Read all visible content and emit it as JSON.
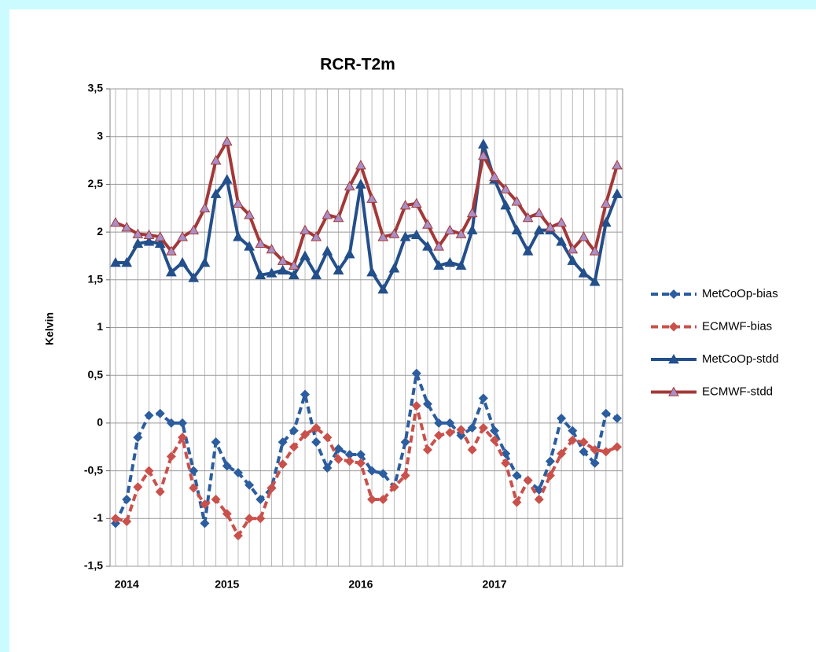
{
  "chart_data": {
    "type": "line",
    "title": "RCR-T2m",
    "y_label": "Kelvin",
    "categories": [
      null,
      "2014",
      null,
      null,
      null,
      null,
      null,
      null,
      null,
      null,
      "2015",
      null,
      null,
      null,
      null,
      null,
      null,
      null,
      null,
      null,
      null,
      null,
      "2016",
      null,
      null,
      null,
      null,
      null,
      null,
      null,
      null,
      null,
      null,
      null,
      "2017",
      null,
      null,
      null,
      null,
      null,
      null,
      null,
      null,
      null,
      null,
      null
    ],
    "ylim": [
      -1.5,
      3.5
    ],
    "yticks": [
      {
        "value": -1.5,
        "label": "-1,5"
      },
      -1,
      {
        "value": -0.5,
        "label": "-0,5"
      },
      0,
      {
        "value": 0.5,
        "label": "0,5"
      },
      1,
      {
        "value": 1.5,
        "label": "1,5"
      },
      2,
      {
        "value": 2.5,
        "label": "2,5"
      },
      3,
      {
        "value": 3.5,
        "label": "3,5"
      }
    ],
    "grid": true,
    "legend": "right",
    "series": [
      {
        "name": "MetCoOp-bias",
        "color": "#2c5d9e",
        "marker": "diamond",
        "dashed": true,
        "values": [
          -1.05,
          -0.8,
          -0.15,
          0.08,
          0.1,
          0.0,
          0.0,
          -0.5,
          -1.05,
          -0.2,
          -0.45,
          -0.52,
          -0.65,
          -0.8,
          -0.68,
          -0.2,
          -0.08,
          0.3,
          -0.2,
          -0.47,
          -0.27,
          -0.33,
          -0.33,
          -0.5,
          -0.53,
          -0.67,
          -0.2,
          0.52,
          0.2,
          0.0,
          0.0,
          -0.13,
          -0.05,
          0.26,
          -0.08,
          -0.32,
          -0.55,
          -0.6,
          -0.7,
          -0.4,
          0.05,
          -0.08,
          -0.3,
          -0.42,
          0.1,
          0.05
        ]
      },
      {
        "name": "ECMWF-bias",
        "color": "#c9514c",
        "marker": "diamond",
        "dashed": true,
        "values": [
          -1.0,
          -1.03,
          -0.67,
          -0.5,
          -0.72,
          -0.35,
          -0.15,
          -0.68,
          -0.85,
          -0.8,
          -0.95,
          -1.18,
          -1.0,
          -1.0,
          -0.68,
          -0.43,
          -0.25,
          -0.12,
          -0.05,
          -0.15,
          -0.38,
          -0.4,
          -0.42,
          -0.8,
          -0.8,
          -0.67,
          -0.55,
          0.18,
          -0.28,
          -0.13,
          -0.1,
          -0.07,
          -0.28,
          -0.05,
          -0.18,
          -0.42,
          -0.83,
          -0.6,
          -0.8,
          -0.55,
          -0.32,
          -0.18,
          -0.2,
          -0.28,
          -0.3,
          -0.25
        ]
      },
      {
        "name": "MetCoOp-stdd",
        "color": "#234f8a",
        "marker": "triangle",
        "dashed": false,
        "values": [
          1.68,
          1.68,
          1.88,
          1.9,
          1.88,
          1.58,
          1.68,
          1.52,
          1.68,
          2.4,
          2.55,
          1.95,
          1.85,
          1.55,
          1.57,
          1.6,
          1.55,
          1.75,
          1.55,
          1.8,
          1.6,
          1.77,
          2.5,
          1.58,
          1.4,
          1.62,
          1.95,
          1.97,
          1.85,
          1.65,
          1.68,
          1.65,
          2.02,
          2.92,
          2.55,
          2.28,
          2.02,
          1.8,
          2.02,
          2.02,
          1.9,
          1.7,
          1.57,
          1.48,
          2.1,
          2.4
        ]
      },
      {
        "name": "ECMWF-stdd",
        "color": "#a33838",
        "marker": "triangle",
        "marker_fill": "#a98fc6",
        "dashed": false,
        "values": [
          2.1,
          2.05,
          1.98,
          1.97,
          1.95,
          1.8,
          1.95,
          2.02,
          2.25,
          2.75,
          2.95,
          2.3,
          2.18,
          1.88,
          1.82,
          1.7,
          1.65,
          2.02,
          1.95,
          2.18,
          2.15,
          2.48,
          2.7,
          2.35,
          1.95,
          1.98,
          2.28,
          2.3,
          2.08,
          1.85,
          2.02,
          1.98,
          2.2,
          2.8,
          2.58,
          2.45,
          2.32,
          2.15,
          2.2,
          2.05,
          2.1,
          1.82,
          1.95,
          1.8,
          2.3,
          2.7
        ]
      }
    ]
  }
}
